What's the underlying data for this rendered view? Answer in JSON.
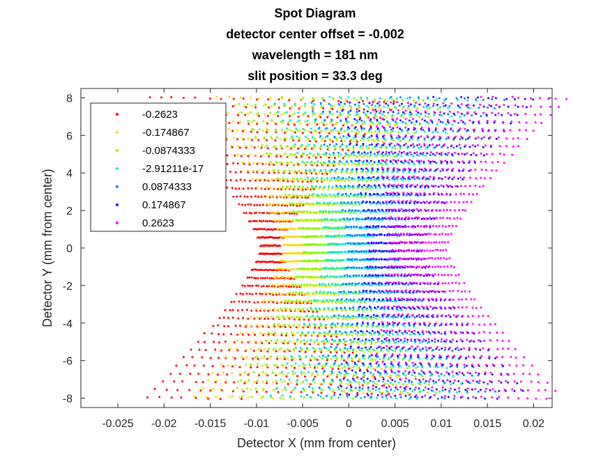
{
  "chart_data": {
    "type": "scatter",
    "title": [
      "Spot Diagram",
      "detector center offset = -0.002",
      "wavelength = 181 nm",
      "slit position = 33.3 deg"
    ],
    "xlabel": "Detector X (mm from center)",
    "ylabel": "Detector Y (mm from center)",
    "xlim": [
      -0.029,
      0.022
    ],
    "ylim": [
      -8.5,
      8.5
    ],
    "xticks": [
      -0.025,
      -0.02,
      -0.015,
      -0.01,
      -0.005,
      0,
      0.005,
      0.01,
      0.015,
      0.02
    ],
    "xtick_labels": [
      "-0.025",
      "-0.02",
      "-0.015",
      "-0.01",
      "-0.005",
      "0",
      "0.005",
      "0.01",
      "0.015",
      "0.02"
    ],
    "yticks": [
      8,
      6,
      4,
      2,
      0,
      -2,
      -4,
      -6,
      -8
    ],
    "ytick_labels": [
      "8",
      "6",
      "4",
      "2",
      "0",
      "-2",
      "-4",
      "-6",
      "-8"
    ],
    "grid": false,
    "legend_position": "top-left",
    "series": [
      {
        "name": "-0.2623",
        "color": "#ff0000",
        "center_x": -0.0085,
        "half_width_center": 0.001,
        "half_width_edge": 0.0135,
        "edge_shift": 0.0005
      },
      {
        "name": "-0.174867",
        "color": "#ffd700",
        "center_x": -0.0055,
        "half_width_center": 0.0015,
        "half_width_edge": 0.012,
        "edge_shift": 0.0018
      },
      {
        "name": "-0.0874333",
        "color": "#7cfc00",
        "center_x": -0.003,
        "half_width_center": 0.0018,
        "half_width_edge": 0.0115,
        "edge_shift": 0.003
      },
      {
        "name": "-2.91211e-17",
        "color": "#00e6e6",
        "center_x": 0.0,
        "half_width_center": 0.0022,
        "half_width_edge": 0.011,
        "edge_shift": 0.0045
      },
      {
        "name": "0.0874333",
        "color": "#0080ff",
        "center_x": 0.0025,
        "half_width_center": 0.0025,
        "half_width_edge": 0.0105,
        "edge_shift": 0.006
      },
      {
        "name": "0.174867",
        "color": "#3300ff",
        "center_x": 0.005,
        "half_width_center": 0.0028,
        "half_width_edge": 0.0105,
        "edge_shift": 0.0075
      },
      {
        "name": "0.2623",
        "color": "#ff00ff",
        "center_x": 0.0075,
        "half_width_center": 0.003,
        "half_width_edge": 0.0105,
        "edge_shift": 0.009
      }
    ]
  }
}
